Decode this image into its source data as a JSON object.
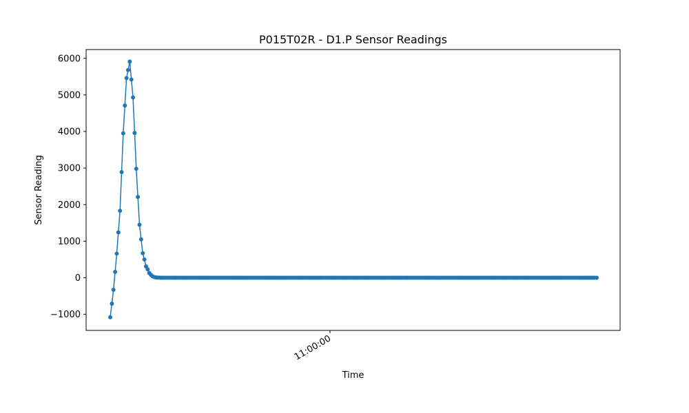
{
  "chart_data": {
    "type": "line",
    "title": "P015T02R - D1.P Sensor Readings",
    "xlabel": "Time",
    "ylabel": "Sensor Reading",
    "x_tick_labels": [
      "11:00:00"
    ],
    "y_ticks": [
      -1000,
      0,
      1000,
      2000,
      3000,
      4000,
      5000,
      6000
    ],
    "y_tick_labels": [
      "−1000",
      "0",
      "1000",
      "2000",
      "3000",
      "4000",
      "5000",
      "6000"
    ],
    "ylim": [
      -1440,
      6240
    ],
    "legend": "none",
    "grid": false,
    "marker": "circle",
    "series": [
      {
        "color": "#1f77b4",
        "values": [
          -1080,
          -710,
          -330,
          160,
          660,
          1240,
          1830,
          2890,
          3950,
          4710,
          5460,
          5680,
          5910,
          5420,
          4930,
          3960,
          2980,
          2210,
          1450,
          1050,
          670,
          500,
          310,
          230,
          130,
          80,
          40,
          20,
          10,
          5,
          2,
          1,
          0
        ]
      }
    ],
    "flat_tail": {
      "value": 0,
      "count": 250
    }
  }
}
